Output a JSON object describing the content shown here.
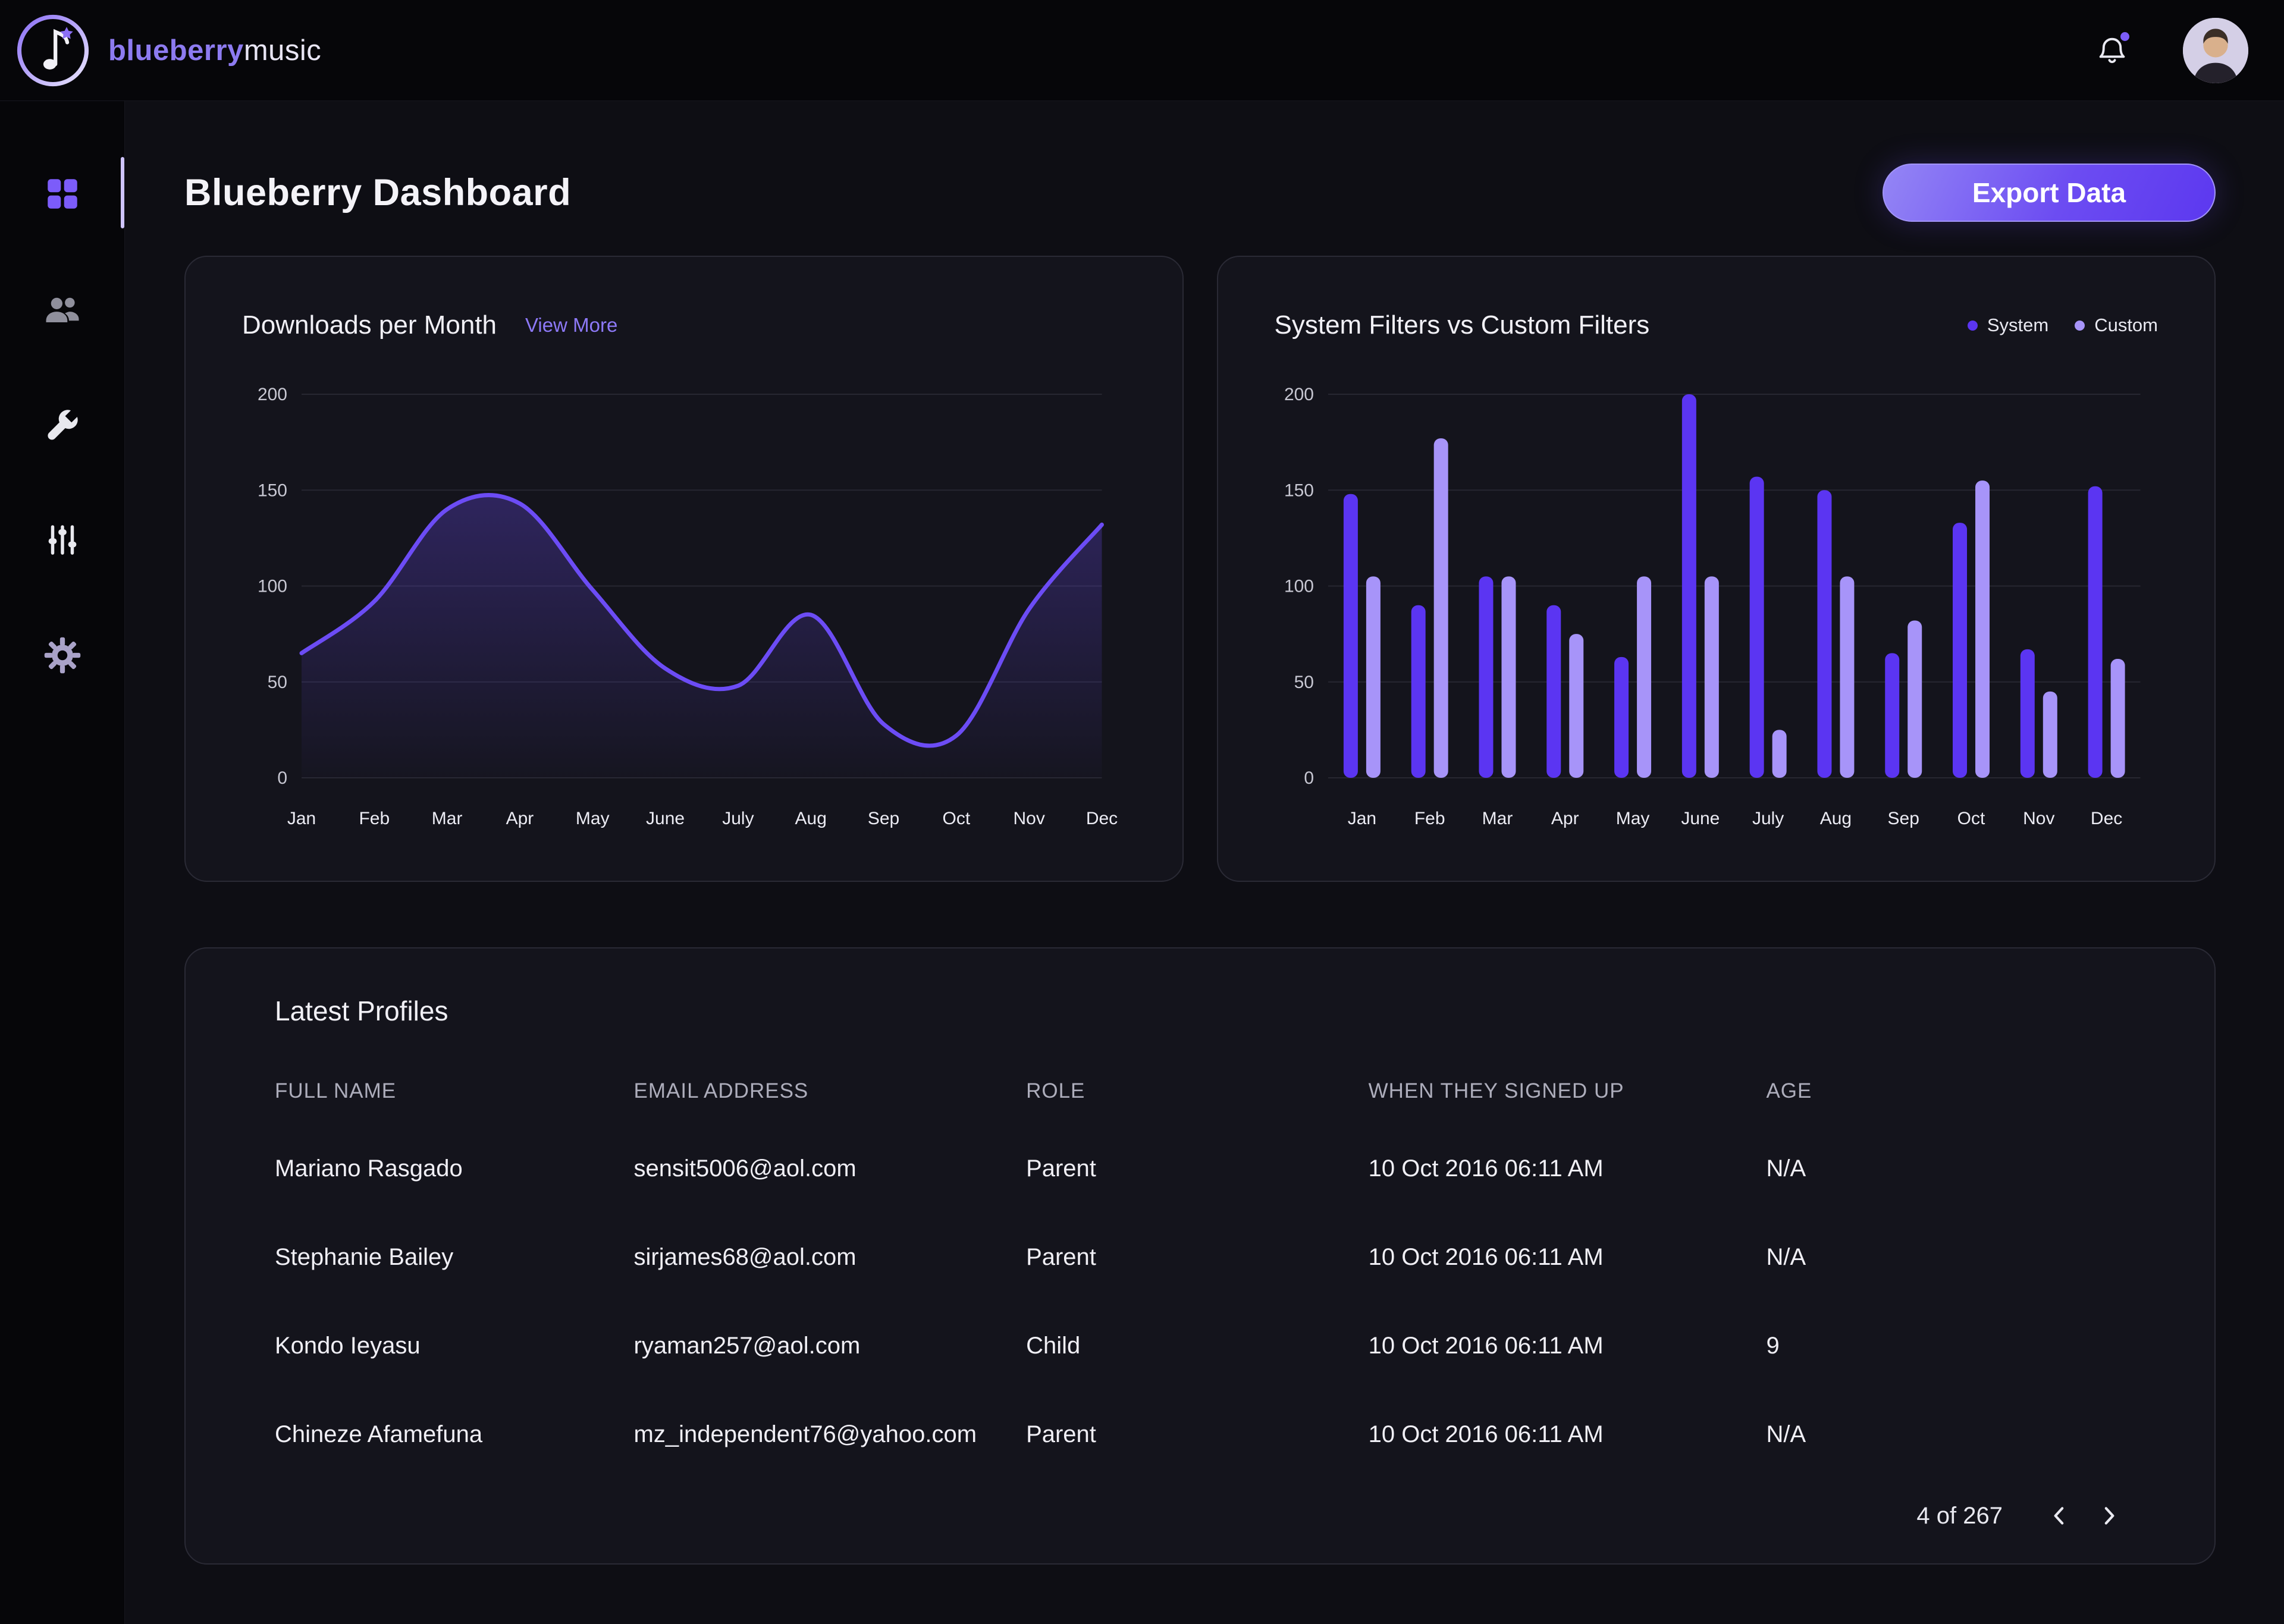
{
  "topbar": {
    "brand_bold": "blueberry",
    "brand_light": "music"
  },
  "sidebar": {
    "items": [
      {
        "name": "dashboard",
        "active": true
      },
      {
        "name": "users",
        "active": false
      },
      {
        "name": "tools",
        "active": false
      },
      {
        "name": "filters",
        "active": false
      },
      {
        "name": "settings",
        "active": false
      }
    ]
  },
  "page": {
    "title": "Blueberry Dashboard",
    "export_button": "Export Data"
  },
  "chart_data": [
    {
      "type": "line",
      "title": "Downloads per Month",
      "link_label": "View More",
      "x": [
        "Jan",
        "Feb",
        "Mar",
        "Apr",
        "May",
        "June",
        "July",
        "Aug",
        "Sep",
        "Oct",
        "Nov",
        "Dec"
      ],
      "values": [
        65,
        92,
        140,
        143,
        98,
        57,
        48,
        85,
        28,
        22,
        88,
        132
      ],
      "ylim": [
        0,
        200
      ],
      "yticks": [
        0,
        50,
        100,
        150,
        200
      ],
      "line_color": "#6c4cf5",
      "area_fill_top": "rgba(108,76,245,0.30)",
      "area_fill_bottom": "rgba(108,76,245,0.02)",
      "grid": true,
      "legend_position": "none"
    },
    {
      "type": "bar",
      "title": "System Filters vs Custom Filters",
      "categories": [
        "Jan",
        "Feb",
        "Mar",
        "Apr",
        "May",
        "June",
        "July",
        "Aug",
        "Sep",
        "Oct",
        "Nov",
        "Dec"
      ],
      "series": [
        {
          "name": "System",
          "color": "#5b35f2",
          "values": [
            148,
            90,
            105,
            90,
            63,
            200,
            157,
            150,
            65,
            133,
            67,
            152
          ]
        },
        {
          "name": "Custom",
          "color": "#a794f9",
          "values": [
            105,
            177,
            105,
            75,
            105,
            105,
            25,
            105,
            82,
            155,
            45,
            62
          ]
        }
      ],
      "ylim": [
        0,
        200
      ],
      "yticks": [
        0,
        50,
        100,
        150,
        200
      ],
      "grid": true,
      "legend_position": "top-right"
    }
  ],
  "table": {
    "title": "Latest Profiles",
    "columns": [
      "FULL NAME",
      "EMAIL ADDRESS",
      "ROLE",
      "WHEN THEY SIGNED UP",
      "AGE"
    ],
    "rows": [
      [
        "Mariano Rasgado",
        "sensit5006@aol.com",
        "Parent",
        "10 Oct 2016 06:11 AM",
        "N/A"
      ],
      [
        "Stephanie Bailey",
        "sirjames68@aol.com",
        "Parent",
        "10 Oct 2016 06:11 AM",
        "N/A"
      ],
      [
        "Kondo Ieyasu",
        "ryaman257@aol.com",
        "Child",
        "10 Oct 2016 06:11 AM",
        "9"
      ],
      [
        "Chineze Afamefuna",
        "mz_independent76@yahoo.com",
        "Parent",
        "10 Oct 2016 06:11 AM",
        "N/A"
      ]
    ],
    "pagination": "4 of 267"
  },
  "colors": {
    "accent": "#6c4cf5",
    "page_bg": "#0e0e14",
    "panel_bg": "#060609",
    "card_bg": "#14141c",
    "card_border": "#2a2a35",
    "grid_line": "#272731",
    "tick_label": "#c7c7d2",
    "axis_label": "#ececf4"
  }
}
